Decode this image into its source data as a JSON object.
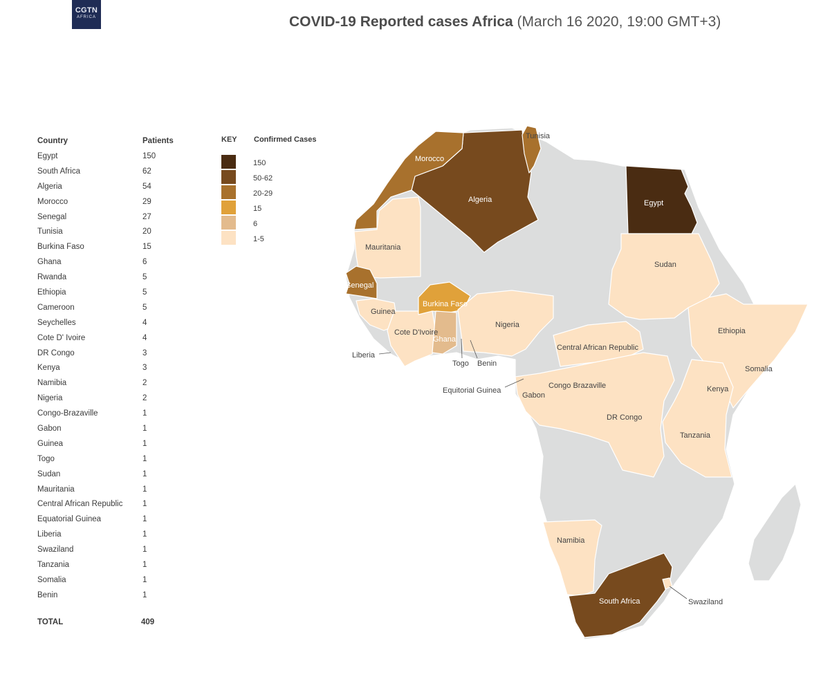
{
  "logo": {
    "line1": "CGTN",
    "line2": "AFRICA"
  },
  "title": {
    "bold": "COVID-19 Reported cases Africa",
    "normal": "(March 16 2020, 19:00 GMT+3)"
  },
  "table": {
    "header_country": "Country",
    "header_patients": "Patients",
    "rows": [
      {
        "country": "Egypt",
        "patients": "150"
      },
      {
        "country": "South Africa",
        "patients": "62"
      },
      {
        "country": "Algeria",
        "patients": "54"
      },
      {
        "country": "Morocco",
        "patients": "29"
      },
      {
        "country": "Senegal",
        "patients": "27"
      },
      {
        "country": "Tunisia",
        "patients": "20"
      },
      {
        "country": "Burkina Faso",
        "patients": "15"
      },
      {
        "country": "Ghana",
        "patients": "6"
      },
      {
        "country": "Rwanda",
        "patients": "5"
      },
      {
        "country": "Ethiopia",
        "patients": "5"
      },
      {
        "country": "Cameroon",
        "patients": "5"
      },
      {
        "country": "Seychelles",
        "patients": "4"
      },
      {
        "country": "Cote D' Ivoire",
        "patients": "4"
      },
      {
        "country": "DR Congo",
        "patients": "3"
      },
      {
        "country": "Kenya",
        "patients": "3"
      },
      {
        "country": "Namibia",
        "patients": "2"
      },
      {
        "country": "Nigeria",
        "patients": "2"
      },
      {
        "country": "Congo-Brazaville",
        "patients": "1"
      },
      {
        "country": "Gabon",
        "patients": "1"
      },
      {
        "country": "Guinea",
        "patients": "1"
      },
      {
        "country": "Togo",
        "patients": "1"
      },
      {
        "country": "Sudan",
        "patients": "1"
      },
      {
        "country": "Mauritania",
        "patients": "1"
      },
      {
        "country": "Central African Republic",
        "patients": "1"
      },
      {
        "country": "Equatorial Guinea",
        "patients": "1"
      },
      {
        "country": "Liberia",
        "patients": "1"
      },
      {
        "country": "Swaziland",
        "patients": "1"
      },
      {
        "country": "Tanzania",
        "patients": "1"
      },
      {
        "country": "Somalia",
        "patients": "1"
      },
      {
        "country": "Benin",
        "patients": "1"
      }
    ],
    "total_label": "TOTAL",
    "total_value": "409"
  },
  "key": {
    "header_key": "KEY",
    "header_cases": "Confirmed Cases",
    "items": [
      {
        "label": "150",
        "color": "#4a2c12"
      },
      {
        "label": "50-62",
        "color": "#774a1e"
      },
      {
        "label": "20-29",
        "color": "#a8712d"
      },
      {
        "label": "15",
        "color": "#e0a13a"
      },
      {
        "label": "6",
        "color": "#e3bb8d"
      },
      {
        "label": "1-5",
        "color": "#fde2c3"
      }
    ]
  },
  "colors": {
    "no_data": "#dcdddd",
    "border": "#ffffff"
  },
  "map_labels": {
    "morocco": "Morocco",
    "tunisia": "Tunisia",
    "algeria": "Algeria",
    "egypt": "Egypt",
    "mauritania": "Mauritania",
    "senegal": "Senegal",
    "guinea": "Guinea",
    "burkina_faso": "Burkina Faso",
    "cote_divoire": "Cote D'Ivoire",
    "ghana": "Ghana",
    "liberia": "Liberia",
    "togo": "Togo",
    "benin": "Benin",
    "nigeria": "Nigeria",
    "sudan": "Sudan",
    "ethiopia": "Ethiopia",
    "somalia": "Somalia",
    "car": "Central African Republic",
    "equatorial_guinea": "Equitorial Guinea",
    "gabon": "Gabon",
    "congo_brazaville": "Congo Brazaville",
    "kenya": "Kenya",
    "dr_congo": "DR Congo",
    "tanzania": "Tanzania",
    "namibia": "Namibia",
    "south_africa": "South Africa",
    "swaziland": "Swaziland"
  }
}
